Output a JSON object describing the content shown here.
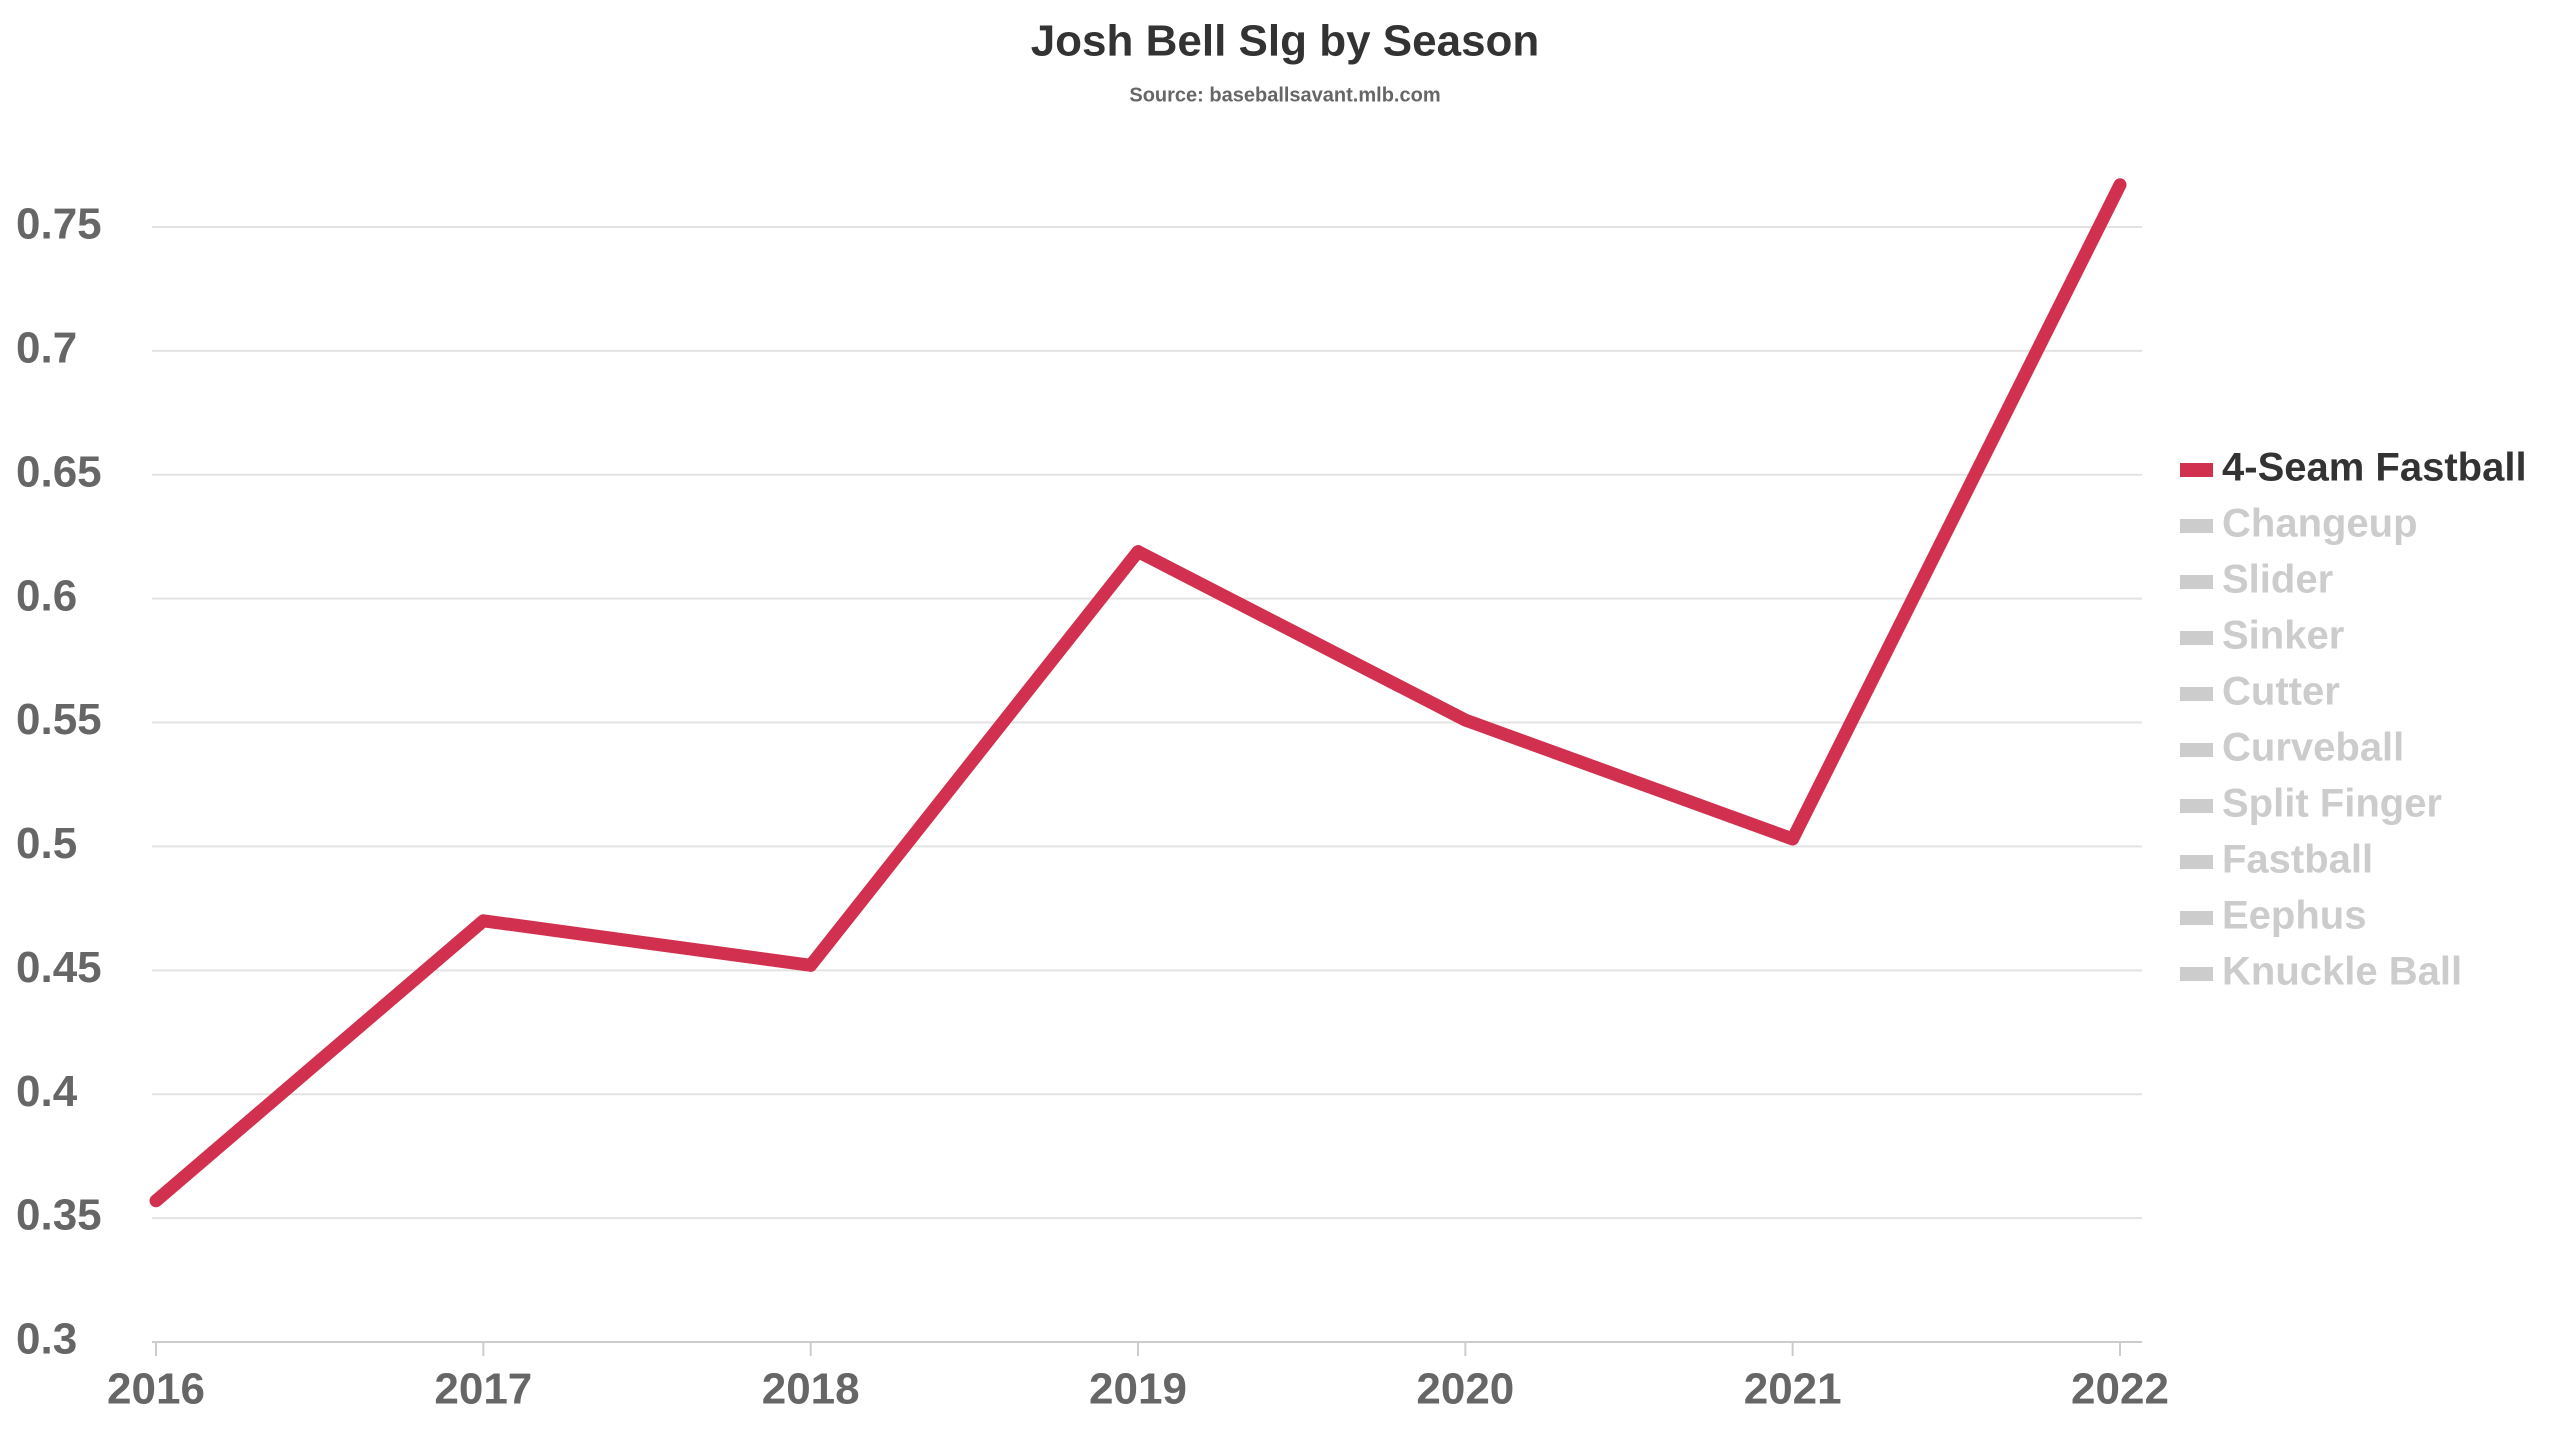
{
  "chart_data": {
    "type": "line",
    "title": "Josh Bell Slg by Season",
    "subtitle": "Source: baseballsavant.mlb.com",
    "x": [
      2016,
      2017,
      2018,
      2019,
      2020,
      2021,
      2022
    ],
    "series": [
      {
        "name": "4-Seam Fastball",
        "color": "#d1304f",
        "values": [
          0.357,
          0.47,
          0.452,
          0.619,
          0.551,
          0.503,
          0.767
        ]
      }
    ],
    "legend": {
      "position": "right",
      "inactive": [
        "Changeup",
        "Slider",
        "Sinker",
        "Cutter",
        "Curveball",
        "Split Finger",
        "Fastball",
        "Eephus",
        "Knuckle Ball"
      ],
      "inactive_color": "#cccccc"
    },
    "xlim": [
      2016,
      2022
    ],
    "xticks": [
      2016,
      2017,
      2018,
      2019,
      2020,
      2021,
      2022
    ],
    "ylim": [
      0.3,
      0.775
    ],
    "yticks": [
      0.3,
      0.35,
      0.4,
      0.45,
      0.5,
      0.55,
      0.6,
      0.65,
      0.7,
      0.75
    ],
    "grid": true
  }
}
